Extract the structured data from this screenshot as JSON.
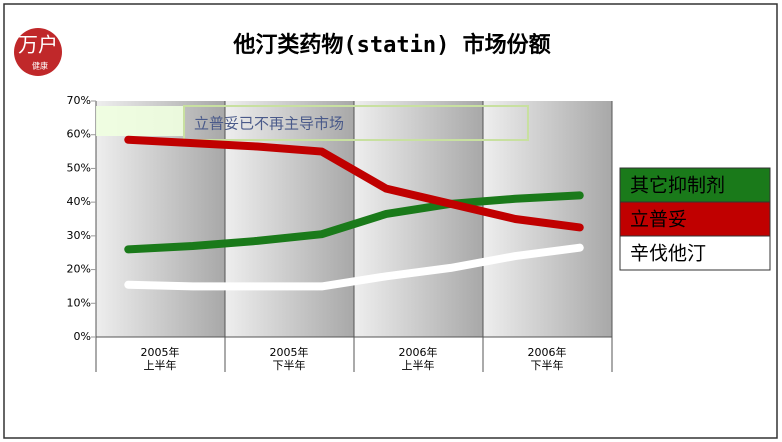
{
  "chart_data": {
    "type": "line",
    "title": "他汀类药物(statin) 市场份额",
    "logo": "万户",
    "logo_sub": "健康",
    "annotation": "立普妥已不再主导市场",
    "categories": [
      "2005年\n上半年",
      null,
      "2005年\n下半年",
      null,
      "2006年\n上半年",
      null,
      "2006年\n下半年",
      null
    ],
    "series": [
      {
        "name": "其它抑制剂",
        "color": "#1a7a1a",
        "values": [
          26,
          27,
          28.5,
          30.5,
          36.5,
          39.5,
          41,
          42
        ]
      },
      {
        "name": "立普妥",
        "color": "#c00000",
        "values": [
          58.5,
          57.5,
          56.5,
          55,
          44,
          39.5,
          35,
          32.5
        ]
      },
      {
        "name": "辛伐他汀",
        "color": "#ffffff",
        "values": [
          15.5,
          15,
          15,
          15,
          18,
          20.5,
          24,
          26.5
        ]
      }
    ],
    "ylim": [
      0,
      70
    ],
    "yticks": [
      {
        "value": 0,
        "label": "0%"
      },
      {
        "value": 10,
        "label": "10%"
      },
      {
        "value": 20,
        "label": "20%"
      },
      {
        "value": 30,
        "label": "30%"
      },
      {
        "value": 40,
        "label": "40%"
      },
      {
        "value": 50,
        "label": "50%"
      },
      {
        "value": 60,
        "label": "60%"
      },
      {
        "value": 70,
        "label": "70%"
      }
    ],
    "grid": false
  }
}
